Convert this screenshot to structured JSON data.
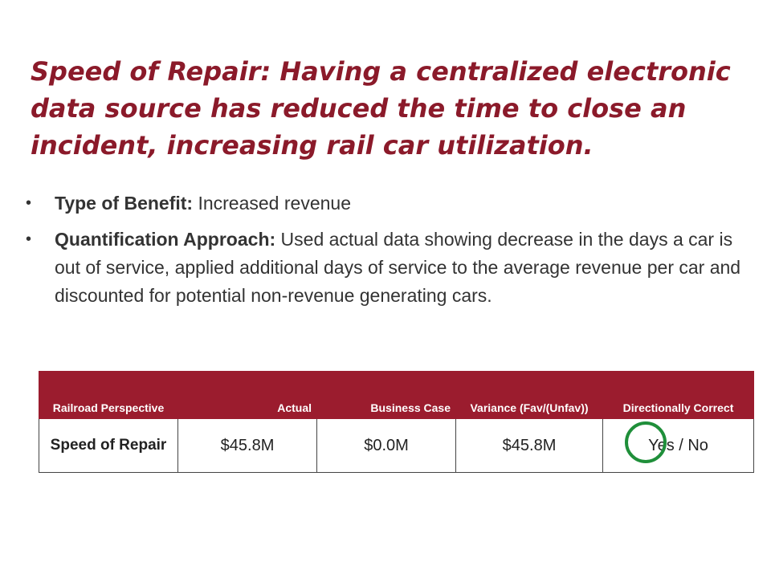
{
  "title": "Speed of Repair: Having a centralized electronic data source has reduced the time to close an incident, increasing rail car utilization.",
  "bullets": [
    {
      "lead": "Type of Benefit:",
      "text": " Increased revenue"
    },
    {
      "lead": "Quantification Approach:",
      "text": "  Used actual data showing decrease in the days a car is out of service, applied additional days of service to the average revenue per car and discounted for potential non-revenue generating cars."
    }
  ],
  "table": {
    "headers": [
      "Railroad Perspective",
      "Actual",
      "Business Case",
      "Variance (Fav/(Unfav))",
      "Directionally Correct"
    ],
    "row": {
      "label": "Speed of Repair",
      "actual": "$45.8M",
      "business_case": "$0.0M",
      "variance": "$45.8M",
      "directionally_correct": "Yes / No"
    }
  },
  "colors": {
    "title": "#8b1a2a",
    "header_bg": "#9b1c2e",
    "circle": "#1f8f3a"
  }
}
